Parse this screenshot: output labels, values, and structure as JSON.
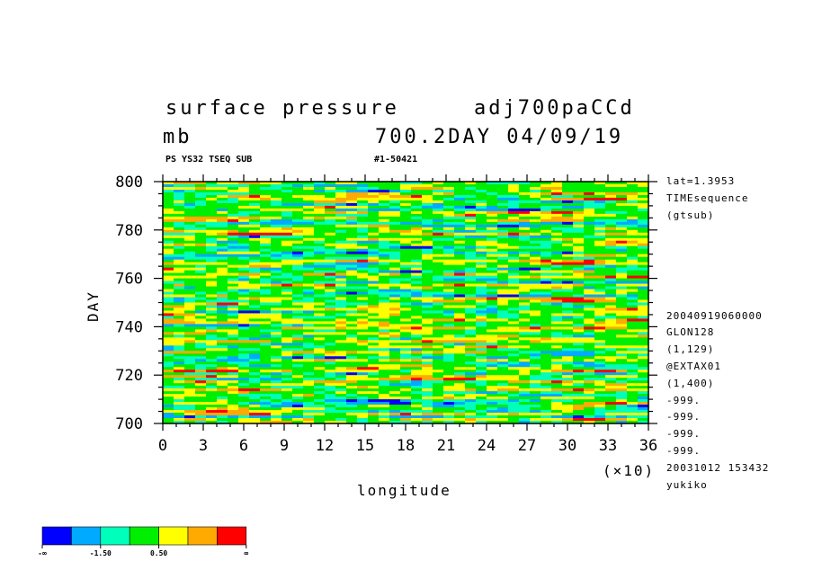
{
  "header": {
    "title_left": "surface pressure",
    "title_right": "adj700paCCd",
    "unit": "mb",
    "subtitle_right": "700.2DAY 04/09/19",
    "tag_left": "PS YS32 TSEQ SUB",
    "tag_right": "#1-50421"
  },
  "side_info_top": [
    "lat=1.3953",
    "TIMEsequence",
    "(gtsub)"
  ],
  "side_info_bottom": [
    "20040919060000",
    "GLON128",
    "(1,129)",
    "@EXTAX01",
    "(1,400)",
    "-999.",
    "-999.",
    "-999.",
    "-999.",
    "20031012 153432",
    "yukiko"
  ],
  "x_multiplier": "(×10)",
  "colorbar": {
    "colors": [
      "#0000ff",
      "#00aaff",
      "#00ffbb",
      "#00ee00",
      "#ffff00",
      "#ffaa00",
      "#ff0000"
    ],
    "labels": [
      "-∞",
      "-1.50",
      "0.50",
      "∞"
    ]
  },
  "chart_data": {
    "type": "heatmap",
    "xlabel": "longitude",
    "ylabel": "DAY",
    "xlim": [
      0,
      36
    ],
    "ylim": [
      700,
      800
    ],
    "x_ticks": [
      "0",
      "3",
      "6",
      "9",
      "12",
      "15",
      "18",
      "21",
      "24",
      "27",
      "30",
      "33",
      "36"
    ],
    "y_ticks": [
      "700",
      "720",
      "740",
      "760",
      "780",
      "800"
    ],
    "x_scale_note": "(×10)",
    "color_levels": [
      "<-1.50 (blue)",
      "-1.50 (light blue)",
      "cyan-green",
      "green",
      "0.50 (yellow)",
      "orange",
      ">0.50 (red)"
    ]
  }
}
